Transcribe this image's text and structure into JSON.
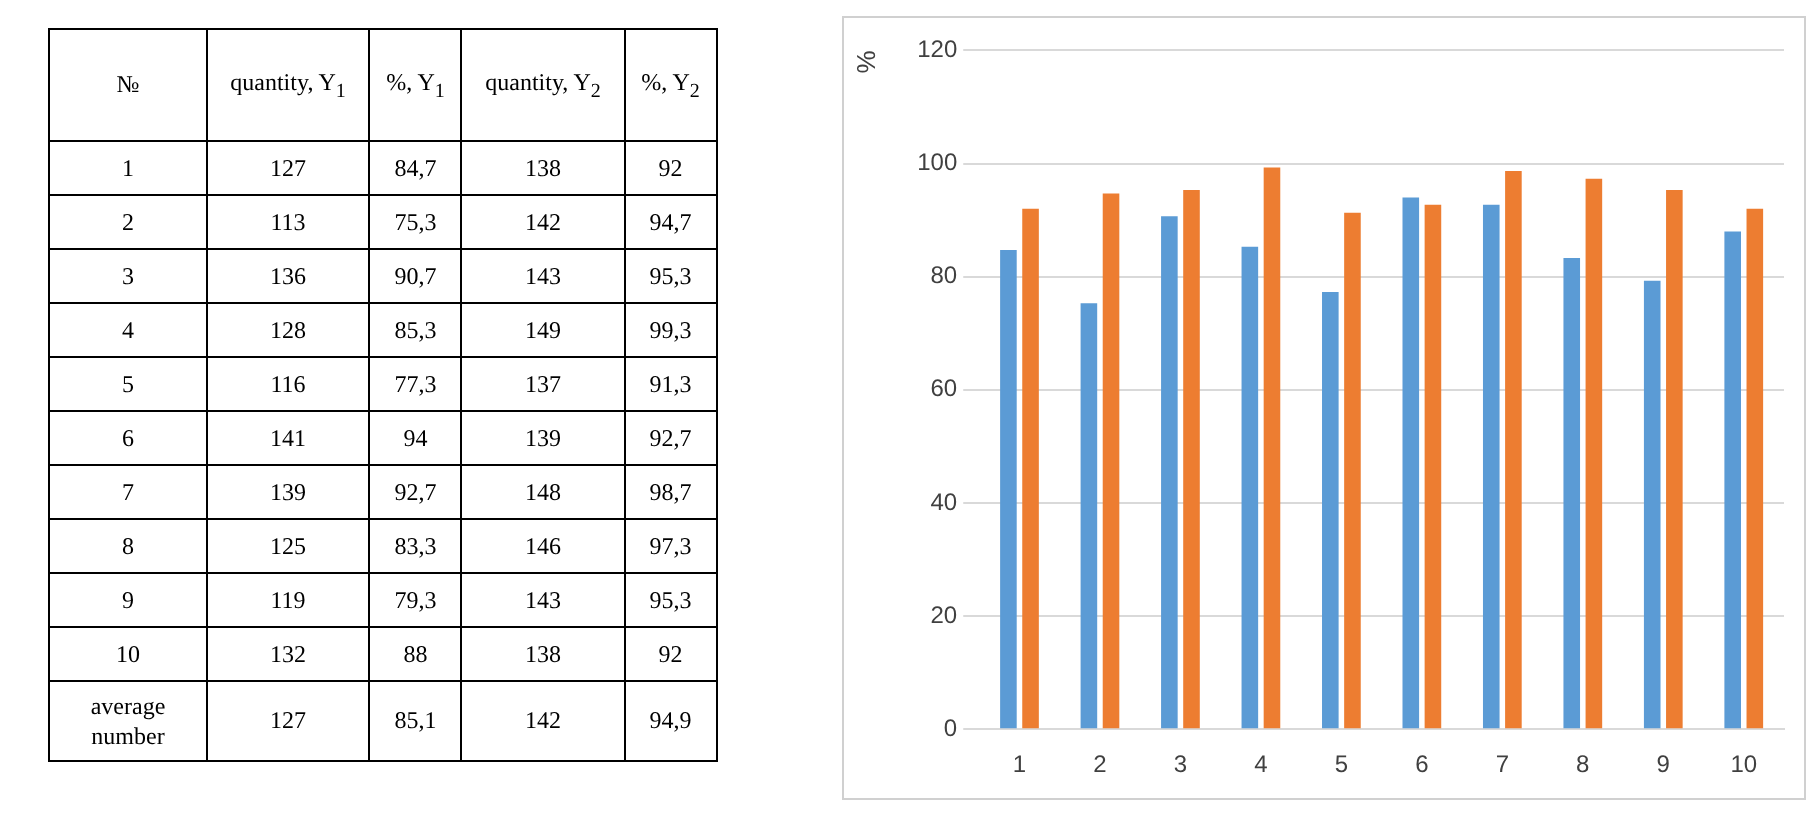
{
  "chart_data": [
    {
      "type": "heatmap",
      "annotations": [
        "№"
      ],
      "cell_labels": [
        [
          "127",
          "84,7",
          "138",
          "92"
        ],
        [
          "113",
          "75,3",
          "142",
          "94,7"
        ],
        [
          "136",
          "90,7",
          "143",
          "95,3"
        ],
        [
          "128",
          "85,3",
          "149",
          "99,3"
        ],
        [
          "116",
          "77,3",
          "137",
          "91,3"
        ],
        [
          "141",
          "94",
          "139",
          "92,7"
        ],
        [
          "139",
          "92,7",
          "148",
          "98,7"
        ],
        [
          "125",
          "83,3",
          "146",
          "97,3"
        ],
        [
          "119",
          "79,3",
          "143",
          "95,3"
        ],
        [
          "132",
          "88",
          "138",
          "92"
        ],
        [
          "127",
          "85,1",
          "142",
          "94,9"
        ]
      ],
      "categories": [
        "quantity, Y$_{1}$",
        "%, Y$_{1}$",
        "quantity, Y$_{2}$",
        "%, Y$_{2}$"
      ],
      "y_categories": [
        "1",
        "2",
        "3",
        "4",
        "5",
        "6",
        "7",
        "8",
        "9",
        "10",
        "average number"
      ],
      "cells": [
        [
          127,
          84.7,
          138,
          92
        ],
        [
          113,
          75.3,
          142,
          94.7
        ],
        [
          136,
          90.7,
          143,
          95.3
        ],
        [
          128,
          85.3,
          149,
          99.3
        ],
        [
          116,
          77.3,
          137,
          91.3
        ],
        [
          141,
          94,
          139,
          92.7
        ],
        [
          139,
          92.7,
          148,
          98.7
        ],
        [
          125,
          83.3,
          146,
          97.3
        ],
        [
          119,
          79.3,
          143,
          95.3
        ],
        [
          132,
          88,
          138,
          92
        ],
        [
          127,
          85.1,
          142,
          94.9
        ]
      ]
    },
    {
      "type": "bar",
      "ylabel": "%",
      "categories": [
        "1",
        "2",
        "3",
        "4",
        "5",
        "6",
        "7",
        "8",
        "9",
        "10"
      ],
      "series": [
        {
          "color": "#5b9bd5",
          "values": [
            84.7,
            75.3,
            90.7,
            85.3,
            77.3,
            94,
            92.7,
            83.3,
            79.3,
            88
          ]
        },
        {
          "color": "#ed7d31",
          "values": [
            92,
            94.7,
            95.3,
            99.3,
            91.3,
            92.7,
            98.7,
            97.3,
            95.3,
            92
          ]
        }
      ],
      "ylim": [
        0,
        120
      ],
      "yticks": [
        0,
        20,
        40,
        60,
        80,
        100,
        120
      ],
      "grid": "y"
    }
  ]
}
